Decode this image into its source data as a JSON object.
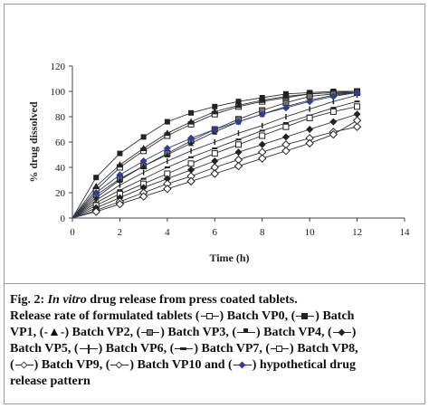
{
  "chart_data": {
    "type": "line",
    "xlabel": "Time (h)",
    "ylabel": "% drug dissolved",
    "xlim": [
      0,
      14
    ],
    "ylim": [
      0,
      120
    ],
    "xticks": [
      0,
      2,
      4,
      6,
      8,
      10,
      12,
      14
    ],
    "yticks": [
      0,
      20,
      40,
      60,
      80,
      100,
      120
    ],
    "grid": false,
    "series": [
      {
        "name": "Batch VP0",
        "marker": "square-open",
        "x": [
          0,
          1,
          2,
          3,
          4,
          5,
          6,
          7,
          8,
          9,
          10,
          11,
          12
        ],
        "y": [
          0,
          22,
          40,
          53,
          65,
          74,
          82,
          88,
          92,
          95,
          98,
          99,
          100
        ]
      },
      {
        "name": "Batch VP1",
        "marker": "square-filled",
        "x": [
          0,
          1,
          2,
          3,
          4,
          5,
          6,
          7,
          8,
          9,
          10,
          11,
          12
        ],
        "y": [
          0,
          32,
          51,
          64,
          76,
          83,
          88,
          92,
          95,
          98,
          99,
          100,
          100
        ]
      },
      {
        "name": "Batch VP2",
        "marker": "triangle-filled",
        "x": [
          0,
          1,
          2,
          3,
          4,
          5,
          6,
          7,
          8,
          9,
          10,
          11,
          12
        ],
        "y": [
          0,
          25,
          42,
          55,
          67,
          76,
          84,
          89,
          93,
          96,
          98,
          99,
          99
        ]
      },
      {
        "name": "Batch VP3",
        "marker": "square-x",
        "x": [
          0,
          1,
          2,
          3,
          4,
          5,
          6,
          7,
          8,
          9,
          10,
          11,
          12
        ],
        "y": [
          0,
          18,
          31,
          41,
          51,
          61,
          70,
          78,
          85,
          91,
          96,
          98,
          99
        ]
      },
      {
        "name": "Batch VP4",
        "marker": "star",
        "x": [
          0,
          1,
          2,
          3,
          4,
          5,
          6,
          7,
          8,
          9,
          10,
          11,
          12
        ],
        "y": [
          0,
          16,
          30,
          41,
          50,
          59,
          68,
          76,
          82,
          88,
          93,
          97,
          99
        ]
      },
      {
        "name": "Batch VP5",
        "marker": "plus",
        "x": [
          0,
          1,
          2,
          3,
          4,
          5,
          6,
          7,
          8,
          9,
          10,
          11,
          12
        ],
        "y": [
          0,
          14,
          26,
          36,
          45,
          53,
          60,
          67,
          73,
          80,
          86,
          92,
          97
        ]
      },
      {
        "name": "Batch VP6",
        "marker": "dash",
        "x": [
          0,
          1,
          2,
          3,
          4,
          5,
          6,
          7,
          8,
          9,
          10,
          11,
          12
        ],
        "y": [
          0,
          12,
          22,
          31,
          40,
          48,
          55,
          62,
          69,
          75,
          81,
          87,
          92
        ]
      },
      {
        "name": "Batch VP7",
        "marker": "square-plus",
        "x": [
          0,
          1,
          2,
          3,
          4,
          5,
          6,
          7,
          8,
          9,
          10,
          11,
          12
        ],
        "y": [
          0,
          10,
          19,
          27,
          35,
          43,
          51,
          58,
          65,
          72,
          79,
          84,
          88
        ]
      },
      {
        "name": "Batch VP8",
        "marker": "diamond-filled",
        "x": [
          0,
          1,
          2,
          3,
          4,
          5,
          6,
          7,
          8,
          9,
          10,
          11,
          12
        ],
        "y": [
          0,
          8,
          16,
          24,
          31,
          38,
          45,
          52,
          58,
          64,
          70,
          76,
          82
        ]
      },
      {
        "name": "Batch VP9",
        "marker": "diamond-open",
        "x": [
          0,
          1,
          2,
          3,
          4,
          5,
          6,
          7,
          8,
          9,
          10,
          11,
          12
        ],
        "y": [
          0,
          6,
          13,
          20,
          27,
          33,
          40,
          46,
          52,
          58,
          63,
          68,
          72
        ]
      },
      {
        "name": "Batch VP10",
        "marker": "diamond-open",
        "x": [
          0,
          1,
          2,
          3,
          4,
          5,
          6,
          7,
          8,
          9,
          10,
          11,
          12
        ],
        "y": [
          0,
          5,
          11,
          17,
          23,
          29,
          35,
          41,
          47,
          53,
          59,
          66,
          77
        ]
      },
      {
        "name": "hypothetical drug release pattern",
        "marker": "diamond-filled-blue",
        "x": [
          0,
          1,
          2,
          3,
          4,
          5,
          6,
          7,
          8,
          9,
          10,
          11,
          12
        ],
        "y": [
          0,
          20,
          34,
          45,
          55,
          63,
          70,
          76,
          82,
          87,
          92,
          96,
          99
        ]
      }
    ]
  },
  "caption": {
    "fig_label": "Fig. 2:",
    "fig_title_italic": "In vitro",
    "fig_title_rest": "drug release from press coated tablets.",
    "release_intro": "Release rate of formulated tablets (",
    "t_vp0": ") Batch VP0, (",
    "t_vp1a": ") Batch",
    "t_vp1b": "VP1, (-▲-) Batch VP2, (",
    "t_vp3": ") Batch VP3, (",
    "t_vp4": ") Batch VP4, (",
    "t_vp5a": ")",
    "t_vp5b": "Batch VP5, (",
    "t_vp6": ") Batch VP6, (",
    "t_vp7": ") Batch VP7, (",
    "t_vp8": ") Batch VP8,",
    "t_vp9a": "(",
    "t_vp9": ") Batch VP9, (",
    "t_vp10": ") Batch VP10 and (",
    "t_hyp": ") hypothetical drug",
    "t_last": "release pattern"
  }
}
